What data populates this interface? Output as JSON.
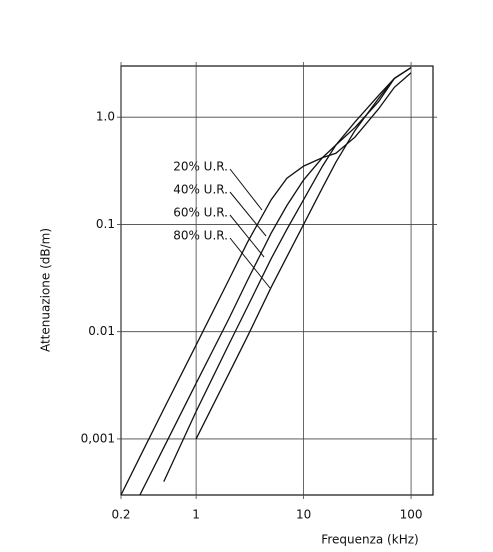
{
  "chart_data": {
    "type": "line",
    "x_label": "Frequenza (kHz)",
    "y_label": "Attenuazione (dB/m)",
    "x": [
      0.2,
      0.3,
      0.5,
      1,
      2,
      3,
      5,
      7,
      10,
      15,
      20,
      30,
      50,
      70,
      100
    ],
    "series": [
      {
        "name": "20% U.R.",
        "color": "#111111",
        "values": [
          0.0003,
          0.00068,
          0.0019,
          0.0075,
          0.03,
          0.068,
          0.17,
          0.27,
          0.35,
          0.42,
          0.46,
          0.65,
          1.2,
          1.9,
          2.6
        ]
      },
      {
        "name": "40% U.R.",
        "color": "#111111",
        "values": [
          null,
          0.0003,
          0.00083,
          0.0033,
          0.013,
          0.03,
          0.083,
          0.15,
          0.26,
          0.42,
          0.55,
          0.8,
          1.4,
          2.3,
          null
        ]
      },
      {
        "name": "60% U.R.",
        "color": "#111111",
        "values": [
          null,
          null,
          0.0004,
          0.0018,
          0.0075,
          0.017,
          0.048,
          0.09,
          0.17,
          0.35,
          0.55,
          0.9,
          1.6,
          2.3,
          2.9
        ]
      },
      {
        "name": "80% U.R.",
        "color": "#111111",
        "values": [
          null,
          null,
          null,
          0.001,
          0.004,
          0.009,
          0.026,
          0.05,
          0.1,
          0.22,
          0.38,
          0.75,
          1.5,
          2.3,
          2.9
        ]
      }
    ],
    "xlim": [
      0.2,
      160
    ],
    "ylim": [
      0.0003,
      3
    ],
    "xticks": [
      0.2,
      1,
      10,
      100
    ],
    "yticks": [
      {
        "value": 1,
        "label": "1.0"
      },
      0.1,
      0.01,
      {
        "value": 0.001,
        "label": "0,001"
      }
    ],
    "log_x": true,
    "log_y": true,
    "grid": true
  }
}
